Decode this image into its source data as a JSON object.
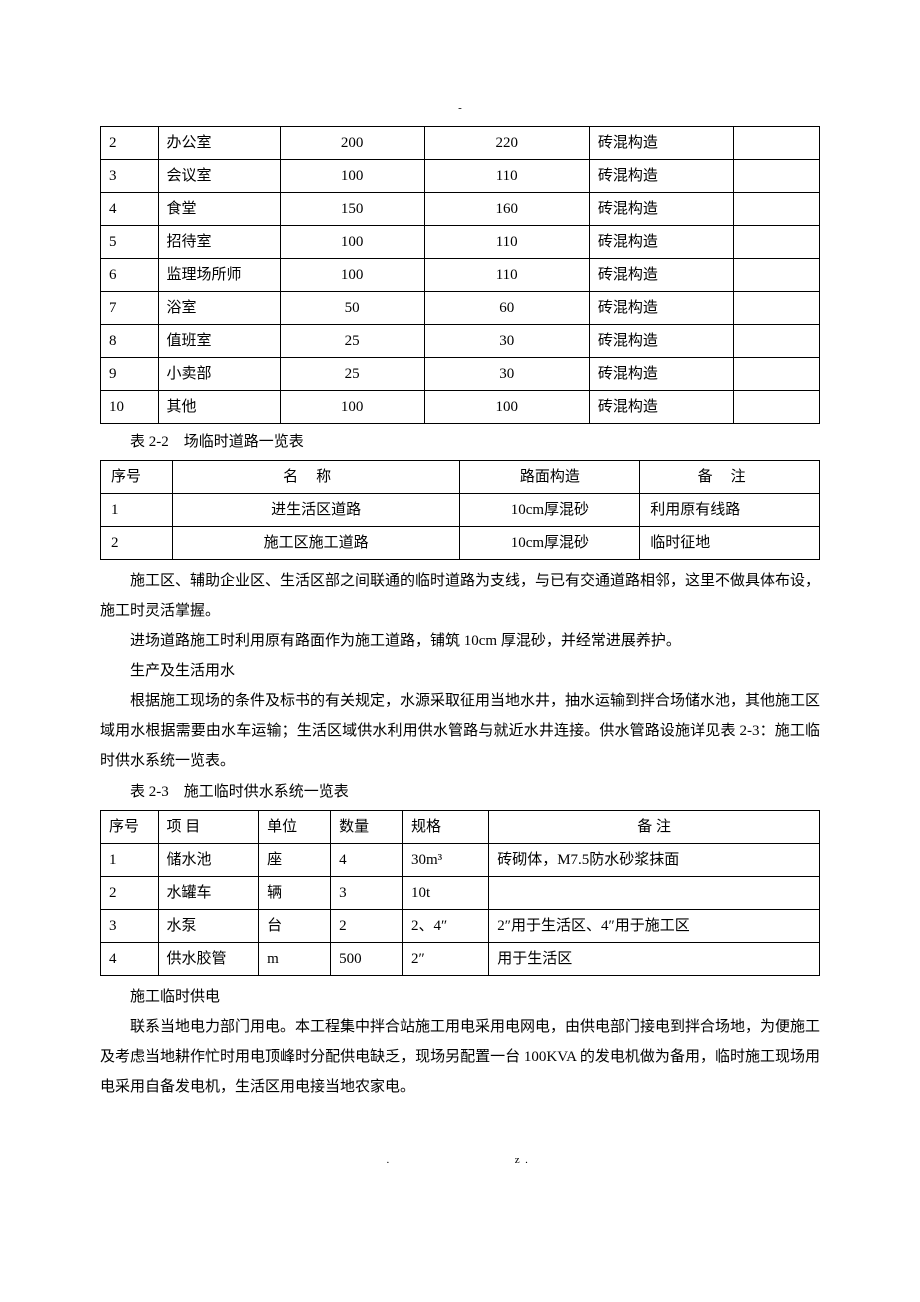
{
  "top_mark": "-",
  "table1": {
    "rows": [
      {
        "no": "2",
        "name": "办公室",
        "v1": "200",
        "v2": "220",
        "struct": "砖混构造",
        "note": ""
      },
      {
        "no": "3",
        "name": "会议室",
        "v1": "100",
        "v2": "110",
        "struct": "砖混构造",
        "note": ""
      },
      {
        "no": "4",
        "name": "食堂",
        "v1": "150",
        "v2": "160",
        "struct": "砖混构造",
        "note": ""
      },
      {
        "no": "5",
        "name": "招待室",
        "v1": "100",
        "v2": "110",
        "struct": "砖混构造",
        "note": ""
      },
      {
        "no": "6",
        "name": "监理场所师",
        "v1": "100",
        "v2": "110",
        "struct": "砖混构造",
        "note": ""
      },
      {
        "no": "7",
        "name": "浴室",
        "v1": "50",
        "v2": "60",
        "struct": "砖混构造",
        "note": ""
      },
      {
        "no": "8",
        "name": "值班室",
        "v1": "25",
        "v2": "30",
        "struct": "砖混构造",
        "note": ""
      },
      {
        "no": "9",
        "name": "小卖部",
        "v1": "25",
        "v2": "30",
        "struct": "砖混构造",
        "note": ""
      },
      {
        "no": "10",
        "name": "其他",
        "v1": "100",
        "v2": "100",
        "struct": "砖混构造",
        "note": ""
      }
    ]
  },
  "caption2": "表 2-2　场临时道路一览表",
  "table2": {
    "header": {
      "c1": "序号",
      "c2": "名称",
      "c3": "路面构造",
      "c4": "备注"
    },
    "rows": [
      {
        "no": "1",
        "name": "进生活区道路",
        "surface": "10cm厚混砂",
        "note": "利用原有线路"
      },
      {
        "no": "2",
        "name": "施工区施工道路",
        "surface": "10cm厚混砂",
        "note": "临时征地"
      }
    ]
  },
  "para1": "施工区、辅助企业区、生活区部之间联通的临时道路为支线，与已有交通道路相邻，这里不做具体布设，施工时灵活掌握。",
  "para2": "进场道路施工时利用原有路面作为施工道路，铺筑 10cm 厚混砂，并经常进展养护。",
  "para3": "生产及生活用水",
  "para4": "根据施工现场的条件及标书的有关规定，水源采取征用当地水井，抽水运输到拌合场储水池，其他施工区域用水根据需要由水车运输；生活区域供水利用供水管路与就近水井连接。供水管路设施详见表 2-3：施工临时供水系统一览表。",
  "caption3": "表 2-3　施工临时供水系统一览表",
  "table3": {
    "header": {
      "c1": "序号",
      "c2": "项  目",
      "c3": "单位",
      "c4": "数量",
      "c5": "规格",
      "c6": "备 注"
    },
    "rows": [
      {
        "no": "1",
        "item": "储水池",
        "unit": "座",
        "qty": "4",
        "spec": "30m³",
        "note": "砖砌体，M7.5防水砂浆抹面"
      },
      {
        "no": "2",
        "item": "水罐车",
        "unit": "辆",
        "qty": "3",
        "spec": "10t",
        "note": ""
      },
      {
        "no": "3",
        "item": "水泵",
        "unit": "台",
        "qty": "2",
        "spec": "2、4″",
        "note": "2″用于生活区、4″用于施工区"
      },
      {
        "no": "4",
        "item": "供水胶管",
        "unit": "m",
        "qty": "500",
        "spec": "2″",
        "note": "用于生活区"
      }
    ]
  },
  "para5": "施工临时供电",
  "para6": "联系当地电力部门用电。本工程集中拌合站施工用电采用电网电，由供电部门接电到拌合场地，为便施工及考虑当地耕作忙时用电顶峰时分配供电缺乏，现场另配置一台 100KVA 的发电机做为备用，临时施工现场用电采用自备发电机，生活区用电接当地农家电。",
  "footer_dot": ".",
  "footer_z": "z."
}
